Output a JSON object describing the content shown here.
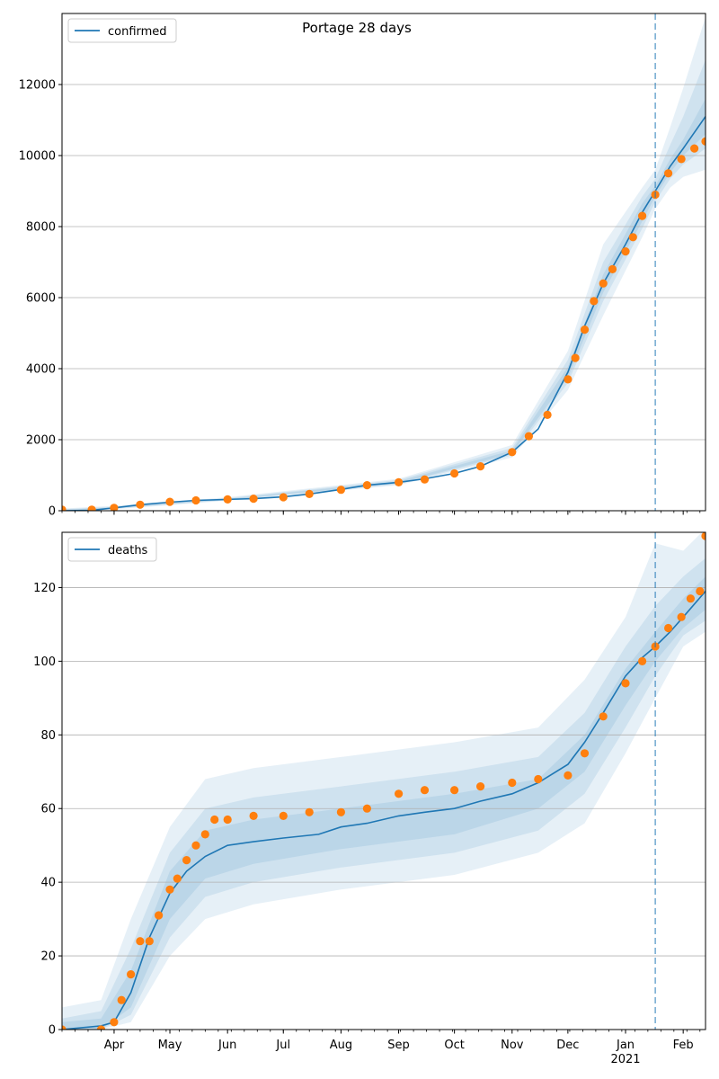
{
  "figure": {
    "title": "Portage 28 days",
    "background": "#ffffff"
  },
  "colors": {
    "model_line": "#1f77b4",
    "band": "#1f77b4",
    "observed": "#ff7f0e",
    "grid": "#b0b0b0",
    "forecast_marker": "#1f77b4"
  },
  "chart_data": [
    {
      "type": "line",
      "name": "confirmed-panel",
      "title": "Portage 28 days",
      "xlabel": "",
      "ylabel": "",
      "x_range": [
        "2020-03-04",
        "2021-02-13"
      ],
      "ylim": [
        0,
        14000
      ],
      "yticks": [
        0,
        2000,
        4000,
        6000,
        8000,
        10000,
        12000
      ],
      "grid": "y",
      "legend": {
        "position": "top-left",
        "entries": [
          "confirmed"
        ]
      },
      "forecast_start": "2021-01-17",
      "series": [
        {
          "name": "confirmed",
          "kind": "model-median",
          "x": [
            "2020-03-04",
            "2020-03-20",
            "2020-04-01",
            "2020-04-15",
            "2020-05-01",
            "2020-05-15",
            "2020-06-01",
            "2020-06-15",
            "2020-07-01",
            "2020-07-15",
            "2020-08-01",
            "2020-08-15",
            "2020-09-01",
            "2020-09-15",
            "2020-10-01",
            "2020-10-15",
            "2020-11-01",
            "2020-11-15",
            "2020-12-01",
            "2020-12-10",
            "2020-12-20",
            "2021-01-01",
            "2021-01-10",
            "2021-01-17",
            "2021-01-25",
            "2021-02-01",
            "2021-02-13"
          ],
          "y": [
            0,
            10,
            80,
            170,
            240,
            290,
            320,
            340,
            390,
            470,
            600,
            720,
            800,
            900,
            1050,
            1250,
            1650,
            2300,
            3900,
            5200,
            6400,
            7500,
            8400,
            9000,
            9700,
            10200,
            11100
          ]
        },
        {
          "name": "confirmed-observed",
          "kind": "observed",
          "x": [
            "2020-03-04",
            "2020-03-20",
            "2020-04-01",
            "2020-04-15",
            "2020-05-01",
            "2020-05-15",
            "2020-06-01",
            "2020-06-15",
            "2020-07-01",
            "2020-07-15",
            "2020-08-01",
            "2020-08-15",
            "2020-09-01",
            "2020-09-15",
            "2020-10-01",
            "2020-10-15",
            "2020-11-01",
            "2020-11-10",
            "2020-11-20",
            "2020-12-01",
            "2020-12-05",
            "2020-12-10",
            "2020-12-15",
            "2020-12-20",
            "2020-12-25",
            "2021-01-01",
            "2021-01-05",
            "2021-01-10",
            "2021-01-17",
            "2021-01-24",
            "2021-01-31",
            "2021-02-07",
            "2021-02-13"
          ],
          "y": [
            30,
            30,
            80,
            170,
            250,
            290,
            320,
            340,
            380,
            470,
            590,
            720,
            800,
            880,
            1050,
            1250,
            1650,
            2100,
            2700,
            3700,
            4300,
            5100,
            5900,
            6400,
            6800,
            7300,
            7700,
            8300,
            8900,
            9500,
            9900,
            10200,
            10400
          ]
        }
      ],
      "bands": [
        {
          "name": "outer",
          "x": [
            "2020-03-04",
            "2020-04-01",
            "2020-06-01",
            "2020-09-01",
            "2020-11-01",
            "2020-12-01",
            "2020-12-20",
            "2021-01-10",
            "2021-01-17",
            "2021-01-25",
            "2021-02-01",
            "2021-02-13"
          ],
          "low": [
            0,
            40,
            280,
            720,
            1500,
            3400,
            5500,
            7700,
            8500,
            9100,
            9400,
            9600
          ],
          "high": [
            60,
            140,
            380,
            900,
            1850,
            4500,
            7500,
            9100,
            9600,
            10800,
            11900,
            13900
          ]
        },
        {
          "name": "middle",
          "x": [
            "2020-03-04",
            "2020-04-01",
            "2020-06-01",
            "2020-09-01",
            "2020-11-01",
            "2020-12-01",
            "2020-12-20",
            "2021-01-10",
            "2021-01-17",
            "2021-01-25",
            "2021-02-01",
            "2021-02-13"
          ],
          "low": [
            0,
            55,
            295,
            745,
            1560,
            3600,
            5900,
            7950,
            8700,
            9350,
            9750,
            10200
          ],
          "high": [
            40,
            115,
            355,
            865,
            1770,
            4250,
            7000,
            8850,
            9350,
            10300,
            11100,
            12700
          ]
        },
        {
          "name": "inner",
          "x": [
            "2020-03-04",
            "2020-04-01",
            "2020-06-01",
            "2020-09-01",
            "2020-11-01",
            "2020-12-01",
            "2020-12-20",
            "2021-01-10",
            "2021-01-17",
            "2021-01-25",
            "2021-02-01",
            "2021-02-13"
          ],
          "low": [
            0,
            68,
            308,
            770,
            1610,
            3750,
            6150,
            8150,
            8850,
            9520,
            10000,
            10600
          ],
          "high": [
            25,
            95,
            335,
            830,
            1700,
            4050,
            6650,
            8650,
            9150,
            9900,
            10450,
            11600
          ]
        }
      ]
    },
    {
      "type": "line",
      "name": "deaths-panel",
      "xlabel": "",
      "ylabel": "",
      "x_range": [
        "2020-03-04",
        "2021-02-13"
      ],
      "ylim": [
        0,
        135
      ],
      "yticks": [
        0,
        20,
        40,
        60,
        80,
        100,
        120
      ],
      "xtick_labels": [
        "Apr",
        "May",
        "Jun",
        "Jul",
        "Aug",
        "Sep",
        "Oct",
        "Nov",
        "Dec",
        "Jan",
        "Feb"
      ],
      "xtick_dates": [
        "2020-04-01",
        "2020-05-01",
        "2020-06-01",
        "2020-07-01",
        "2020-08-01",
        "2020-09-01",
        "2020-10-01",
        "2020-11-01",
        "2020-12-01",
        "2021-01-01",
        "2021-02-01"
      ],
      "xtick_sublabel": "2021",
      "grid": "y",
      "legend": {
        "position": "top-left",
        "entries": [
          "deaths"
        ]
      },
      "forecast_start": "2021-01-17",
      "series": [
        {
          "name": "deaths",
          "kind": "model-median",
          "x": [
            "2020-03-04",
            "2020-03-25",
            "2020-04-01",
            "2020-04-10",
            "2020-04-20",
            "2020-05-01",
            "2020-05-10",
            "2020-05-20",
            "2020-06-01",
            "2020-06-15",
            "2020-07-01",
            "2020-07-20",
            "2020-08-01",
            "2020-08-15",
            "2020-09-01",
            "2020-09-15",
            "2020-10-01",
            "2020-10-15",
            "2020-11-01",
            "2020-11-15",
            "2020-12-01",
            "2020-12-10",
            "2020-12-20",
            "2021-01-01",
            "2021-01-10",
            "2021-01-17",
            "2021-01-25",
            "2021-02-01",
            "2021-02-13"
          ],
          "y": [
            0,
            1,
            2,
            10,
            25,
            37,
            43,
            47,
            50,
            51,
            52,
            53,
            55,
            56,
            58,
            59,
            60,
            62,
            64,
            67,
            72,
            78,
            86,
            96,
            101,
            104,
            108,
            112,
            119
          ]
        },
        {
          "name": "deaths-observed",
          "kind": "observed",
          "x": [
            "2020-03-04",
            "2020-03-25",
            "2020-04-01",
            "2020-04-05",
            "2020-04-10",
            "2020-04-15",
            "2020-04-20",
            "2020-04-25",
            "2020-05-01",
            "2020-05-05",
            "2020-05-10",
            "2020-05-15",
            "2020-05-20",
            "2020-05-25",
            "2020-06-01",
            "2020-06-15",
            "2020-07-01",
            "2020-07-15",
            "2020-08-01",
            "2020-08-15",
            "2020-09-01",
            "2020-09-15",
            "2020-10-01",
            "2020-10-15",
            "2020-11-01",
            "2020-11-15",
            "2020-12-01",
            "2020-12-10",
            "2020-12-20",
            "2021-01-01",
            "2021-01-10",
            "2021-01-17",
            "2021-01-24",
            "2021-01-31",
            "2021-02-05",
            "2021-02-10",
            "2021-02-13"
          ],
          "y": [
            0,
            0,
            2,
            8,
            15,
            24,
            24,
            31,
            38,
            41,
            46,
            50,
            53,
            57,
            57,
            58,
            58,
            59,
            59,
            60,
            64,
            65,
            65,
            66,
            67,
            68,
            69,
            75,
            85,
            94,
            100,
            104,
            109,
            112,
            117,
            119,
            134
          ]
        }
      ],
      "bands": [
        {
          "name": "outer",
          "x": [
            "2020-03-04",
            "2020-03-25",
            "2020-04-10",
            "2020-05-01",
            "2020-05-20",
            "2020-06-15",
            "2020-08-01",
            "2020-10-01",
            "2020-11-15",
            "2020-12-10",
            "2021-01-01",
            "2021-01-17",
            "2021-02-01",
            "2021-02-13"
          ],
          "low": [
            0,
            0,
            2,
            20,
            30,
            34,
            38,
            42,
            48,
            56,
            75,
            90,
            104,
            108
          ],
          "high": [
            6,
            8,
            30,
            55,
            68,
            71,
            74,
            78,
            82,
            95,
            112,
            132,
            130,
            136
          ]
        },
        {
          "name": "middle",
          "x": [
            "2020-03-04",
            "2020-03-25",
            "2020-04-10",
            "2020-05-01",
            "2020-05-20",
            "2020-06-15",
            "2020-08-01",
            "2020-10-01",
            "2020-11-15",
            "2020-12-10",
            "2021-01-01",
            "2021-01-17",
            "2021-02-01",
            "2021-02-13"
          ],
          "low": [
            0,
            0,
            4,
            25,
            36,
            40,
            44,
            48,
            54,
            64,
            82,
            96,
            107,
            111
          ],
          "high": [
            3,
            5,
            22,
            48,
            60,
            63,
            66,
            70,
            74,
            86,
            104,
            115,
            123,
            128
          ]
        },
        {
          "name": "inner",
          "x": [
            "2020-03-04",
            "2020-03-25",
            "2020-04-10",
            "2020-05-01",
            "2020-05-20",
            "2020-06-15",
            "2020-08-01",
            "2020-10-01",
            "2020-11-15",
            "2020-12-10",
            "2021-01-01",
            "2021-01-17",
            "2021-02-01",
            "2021-02-13"
          ],
          "low": [
            0,
            0,
            6,
            30,
            41,
            45,
            49,
            53,
            60,
            70,
            88,
            100,
            109,
            114
          ],
          "high": [
            2,
            3,
            16,
            43,
            54,
            57,
            60,
            64,
            68,
            80,
            98,
            108,
            117,
            123
          ]
        }
      ]
    }
  ]
}
